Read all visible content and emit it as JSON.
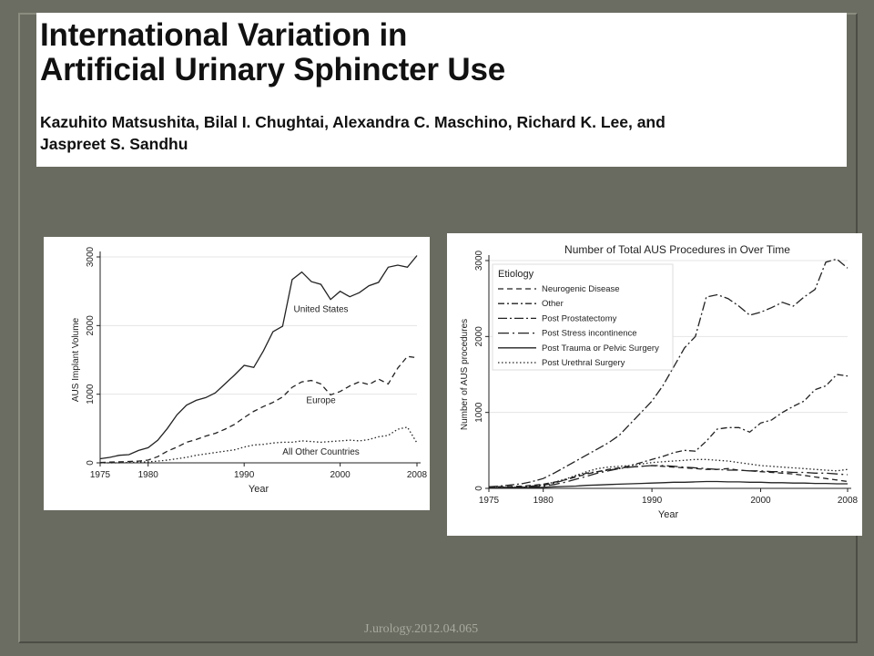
{
  "slide": {
    "title_lines": [
      "International Variation in",
      "Artificial Urinary Sphincter Use"
    ],
    "authors_lines": [
      "Kazuhito Matsushita, Bilal I. Chughtai, Alexandra C. Maschino, Richard K. Lee, and",
      "Jaspreet S. Sandhu"
    ],
    "reference": "J.urology.2012.04.065"
  },
  "colors": {
    "background": "#6b6d62",
    "panel": "#ffffff",
    "line": "#222222",
    "reference_text": "#a8a99e"
  },
  "chart_data": [
    {
      "type": "line",
      "title": "",
      "xlabel": "Year",
      "ylabel": "AUS Implant Volume",
      "xlim": [
        1975,
        2008
      ],
      "ylim": [
        0,
        3000
      ],
      "xticks": [
        1975,
        1980,
        1990,
        2000,
        2008
      ],
      "yticks": [
        0,
        1000,
        2000,
        3000
      ],
      "grid": "horizontal",
      "x": [
        1975,
        1976,
        1977,
        1978,
        1979,
        1980,
        1981,
        1982,
        1983,
        1984,
        1985,
        1986,
        1987,
        1988,
        1989,
        1990,
        1991,
        1992,
        1993,
        1994,
        1995,
        1996,
        1997,
        1998,
        1999,
        2000,
        2001,
        2002,
        2003,
        2004,
        2005,
        2006,
        2007,
        2008
      ],
      "series": [
        {
          "name": "United States",
          "dash": "solid",
          "values": [
            60,
            80,
            110,
            120,
            180,
            220,
            330,
            500,
            700,
            840,
            910,
            950,
            1020,
            1150,
            1280,
            1420,
            1390,
            1630,
            1910,
            1990,
            2670,
            2780,
            2640,
            2600,
            2380,
            2500,
            2420,
            2480,
            2580,
            2630,
            2850,
            2880,
            2850,
            3020
          ]
        },
        {
          "name": "Europe",
          "dash": "dashed",
          "values": [
            5,
            10,
            15,
            20,
            25,
            40,
            90,
            170,
            230,
            300,
            340,
            390,
            430,
            490,
            560,
            660,
            750,
            820,
            880,
            960,
            1100,
            1180,
            1200,
            1150,
            990,
            1040,
            1120,
            1180,
            1140,
            1220,
            1150,
            1380,
            1550,
            1530
          ]
        },
        {
          "name": "All Other Countries",
          "dash": "dotted",
          "values": [
            0,
            0,
            0,
            5,
            10,
            15,
            25,
            40,
            60,
            80,
            110,
            130,
            150,
            170,
            190,
            230,
            260,
            270,
            290,
            300,
            300,
            320,
            310,
            300,
            310,
            320,
            330,
            320,
            340,
            380,
            400,
            490,
            520,
            290
          ]
        }
      ]
    },
    {
      "type": "line",
      "title": "Number of Total AUS Procedures in  Over Time",
      "xlabel": "Year",
      "ylabel": "Number of AUS procedures",
      "xlim": [
        1975,
        2008
      ],
      "ylim": [
        0,
        3000
      ],
      "xticks": [
        1975,
        1980,
        1990,
        2000,
        2008
      ],
      "yticks": [
        0,
        1000,
        2000,
        3000
      ],
      "grid": "horizontal",
      "legend_title": "Etiology",
      "legend_position": "top-left",
      "x": [
        1975,
        1976,
        1977,
        1978,
        1979,
        1980,
        1981,
        1982,
        1983,
        1984,
        1985,
        1986,
        1987,
        1988,
        1989,
        1990,
        1991,
        1992,
        1993,
        1994,
        1995,
        1996,
        1997,
        1998,
        1999,
        2000,
        2001,
        2002,
        2003,
        2004,
        2005,
        2006,
        2007,
        2008
      ],
      "series": [
        {
          "name": "Neurogenic Disease",
          "dash": "dashed",
          "values": [
            20,
            22,
            25,
            30,
            40,
            55,
            80,
            110,
            150,
            190,
            220,
            250,
            270,
            280,
            290,
            300,
            290,
            280,
            270,
            260,
            250,
            250,
            260,
            240,
            230,
            220,
            210,
            200,
            190,
            170,
            150,
            130,
            110,
            90
          ]
        },
        {
          "name": "Other",
          "dash": "dashdot",
          "values": [
            10,
            12,
            15,
            20,
            30,
            40,
            70,
            110,
            160,
            200,
            220,
            240,
            260,
            300,
            340,
            380,
            420,
            470,
            500,
            490,
            620,
            780,
            800,
            800,
            740,
            860,
            900,
            1000,
            1080,
            1150,
            1300,
            1350,
            1500,
            1480
          ]
        },
        {
          "name": "Post Prostatectomy",
          "dash": "dashdotlong",
          "values": [
            20,
            30,
            45,
            60,
            90,
            130,
            200,
            280,
            360,
            440,
            520,
            600,
            700,
            850,
            1000,
            1150,
            1350,
            1600,
            1850,
            2000,
            2520,
            2550,
            2500,
            2400,
            2280,
            2320,
            2380,
            2450,
            2400,
            2520,
            2620,
            2980,
            3020,
            2900
          ]
        },
        {
          "name": "Post Stress incontinence",
          "dash": "longdash",
          "values": [
            5,
            8,
            10,
            15,
            20,
            30,
            50,
            80,
            120,
            160,
            200,
            230,
            260,
            280,
            290,
            300,
            300,
            290,
            280,
            270,
            260,
            250,
            240,
            240,
            230,
            230,
            220,
            220,
            210,
            210,
            200,
            200,
            190,
            180
          ]
        },
        {
          "name": "Post Trauma or Pelvic Surgery",
          "dash": "solid",
          "values": [
            5,
            5,
            8,
            10,
            12,
            15,
            20,
            25,
            30,
            40,
            45,
            50,
            55,
            60,
            65,
            70,
            75,
            80,
            80,
            85,
            90,
            90,
            85,
            85,
            80,
            80,
            75,
            75,
            70,
            70,
            65,
            65,
            60,
            60
          ]
        },
        {
          "name": "Post Urethral Surgery",
          "dash": "dotted",
          "values": [
            10,
            12,
            15,
            20,
            30,
            50,
            80,
            120,
            170,
            220,
            260,
            280,
            290,
            300,
            320,
            340,
            350,
            360,
            370,
            380,
            380,
            370,
            360,
            340,
            320,
            300,
            290,
            280,
            270,
            260,
            250,
            240,
            230,
            250
          ]
        }
      ]
    }
  ]
}
